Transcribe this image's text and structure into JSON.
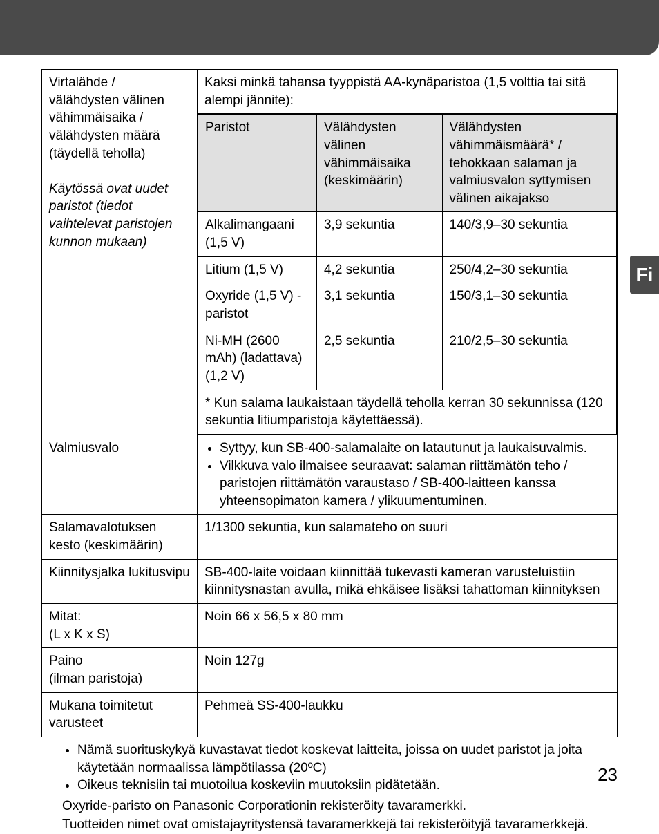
{
  "sideTab": "Fi",
  "pageNumber": "23",
  "specs": {
    "power": {
      "label_line1": "Virtalähde /",
      "label_line2": "välähdysten välinen vähimmäisaika / välähdysten määrä (täydellä teholla)",
      "label_italic": "Käytössä ovat uudet paristot (tiedot vaihtelevat paristojen kunnon mukaan)",
      "intro": "Kaksi minkä tahansa tyyppistä AA-kynäparistoa (1,5 volttia tai sitä alempi jännite):",
      "headers": {
        "col1": "Paristot",
        "col2": "Välähdysten välinen vähimmäisaika (keskimäärin)",
        "col3": "Välähdysten vähimmäismäärä* / tehokkaan salaman ja valmiusvalon syttymisen välinen aikajakso"
      },
      "rows": [
        {
          "c1": "Alkalimangaani (1,5 V)",
          "c2": "3,9 sekuntia",
          "c3": "140/3,9–30 sekuntia"
        },
        {
          "c1": "Litium (1,5 V)",
          "c2": "4,2 sekuntia",
          "c3": "250/4,2–30 sekuntia"
        },
        {
          "c1": "Oxyride (1,5 V) - paristot",
          "c2": "3,1 sekuntia",
          "c3": "150/3,1–30 sekuntia"
        },
        {
          "c1": "Ni-MH (2600 mAh) (ladattava) (1,2 V)",
          "c2": "2,5 sekuntia",
          "c3": "210/2,5–30 sekuntia"
        }
      ],
      "asterisk_note": "*   Kun salama laukaistaan täydellä teholla kerran 30 sekunnissa (120 sekuntia litiumparistoja käytettäessä)."
    },
    "readyLight": {
      "label": "Valmiusvalo",
      "bullets": [
        "Syttyy, kun SB-400-salamalaite on latautunut ja laukaisuvalmis.",
        "Vilkkuva valo ilmaisee seuraavat: salaman riittämätön teho / paristojen riittämätön varaustaso / SB-400-laitteen kanssa yhteensopimaton kamera / ylikuumentuminen."
      ]
    },
    "flashDuration": {
      "label": "Salamavalotuksen kesto (keskimäärin)",
      "value": "1/1300 sekuntia, kun salamateho on suuri"
    },
    "mountLock": {
      "label": "Kiinnitysjalka lukitusvipu",
      "value": "SB-400-laite voidaan kiinnittää tukevasti kameran varusteluistiin kiinnitysnastan avulla, mikä ehkäisee lisäksi tahattoman kiinnityksen"
    },
    "dimensions": {
      "label": "Mitat:\n(L x K x S)",
      "value": "Noin 66 x 56,5 x 80 mm"
    },
    "weight": {
      "label": "Paino\n(ilman paristoja)",
      "value": "Noin 127g"
    },
    "accessories": {
      "label": "Mukana toimitetut varusteet",
      "value": "Pehmeä SS-400-laukku"
    }
  },
  "footer": {
    "bullets": [
      "Nämä suorituskykyä kuvastavat tiedot koskevat laitteita, joissa on uudet paristot ja joita käytetään normaalissa lämpötilassa (20ºC)",
      "Oikeus teknisiin tai muotoilua koskeviin muutoksiin pidätetään."
    ],
    "line1": "Oxyride-paristo on Panasonic Corporationin rekisteröity tavaramerkki.",
    "line2": "Tuotteiden nimet ovat omistajayritystensä tavaramerkkejä tai rekisteröityjä tavaramerkkejä."
  }
}
